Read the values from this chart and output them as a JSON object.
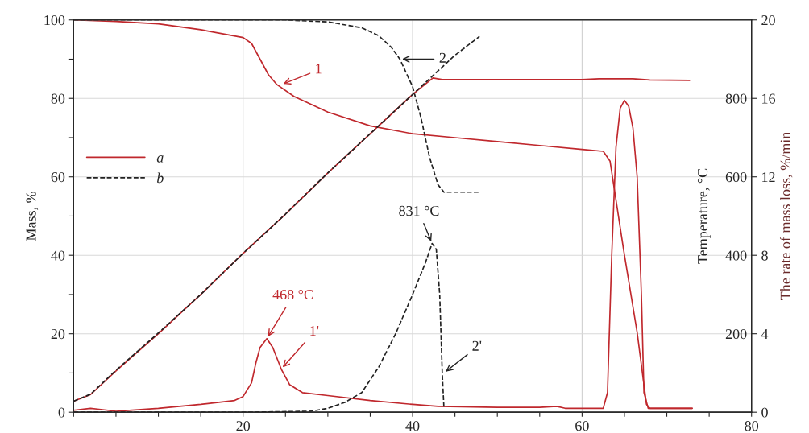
{
  "chart_data": {
    "type": "line",
    "ylabel": "Mass, %",
    "y2label": "Temperature, °C",
    "y3label": "The rate of mass loss, %/min",
    "xlim": [
      0,
      80
    ],
    "xticks": [
      {
        "value": 0,
        "label": null
      },
      {
        "value": 5,
        "label": null
      },
      {
        "value": 10,
        "label": null
      },
      {
        "value": 15,
        "label": null
      },
      20,
      {
        "value": 25,
        "label": null
      },
      {
        "value": 30,
        "label": null
      },
      {
        "value": 35,
        "label": null
      },
      40,
      {
        "value": 45,
        "label": null
      },
      {
        "value": 50,
        "label": null
      },
      {
        "value": 55,
        "label": null
      },
      60,
      {
        "value": 65,
        "label": null
      },
      {
        "value": 70,
        "label": null
      },
      {
        "value": 75,
        "label": null
      },
      80
    ],
    "ylim": [
      0,
      100
    ],
    "yticks": [
      0,
      {
        "value": 10,
        "label": null
      },
      20,
      {
        "value": 30,
        "label": null
      },
      40,
      {
        "value": 50,
        "label": null
      },
      60,
      {
        "value": 70,
        "label": null
      },
      80,
      {
        "value": 90,
        "label": null
      },
      100
    ],
    "y2lim": [
      0,
      1000
    ],
    "y2ticks": [
      200,
      400,
      600,
      800
    ],
    "y3lim": [
      0,
      20
    ],
    "y3ticks": [
      0,
      4,
      8,
      12,
      16,
      20
    ],
    "grid": true,
    "legend": "left",
    "series": [
      {
        "name": "a",
        "color": "#c0282d",
        "line_style": "solid",
        "axis": "y",
        "x": [
          0,
          5,
          10,
          15,
          20,
          21,
          22,
          23,
          24,
          26,
          30,
          35,
          40,
          45,
          50,
          55,
          60,
          62.5,
          63.3,
          64.9,
          66.5,
          67.6,
          68,
          73
        ],
        "values": [
          100,
          99.6,
          99,
          97.5,
          95.5,
          94,
          90,
          86,
          83.5,
          80.5,
          76.5,
          73,
          71,
          70,
          69,
          68,
          67,
          66.5,
          64,
          41.4,
          20.3,
          2,
          1,
          1
        ]
      },
      {
        "name": "b",
        "color": "#222222",
        "line_style": "dashed",
        "axis": "y",
        "x": [
          0,
          10,
          20,
          25,
          30,
          34,
          36,
          37.5,
          38.5,
          40,
          41,
          42,
          43,
          43.7,
          47.9
        ],
        "values": [
          100,
          100,
          100,
          100,
          99.5,
          98,
          96,
          93,
          90,
          83,
          75,
          65,
          58,
          56.1,
          56.1
        ]
      },
      {
        "color": "#c0282d",
        "line_style": "solid",
        "axis": "y2",
        "x": [
          0,
          2,
          5,
          10,
          15,
          20,
          25,
          30,
          35,
          40,
          42.4,
          43.5,
          50,
          60,
          62,
          66,
          68,
          72.7
        ],
        "values": [
          28,
          45,
          105,
          200,
          300,
          405,
          505,
          610,
          710,
          810,
          852,
          848,
          848,
          848,
          850,
          850,
          847,
          846
        ]
      },
      {
        "color": "#222222",
        "line_style": "dashed",
        "axis": "y2",
        "x": [
          0,
          2,
          5,
          10,
          15,
          20,
          25,
          30,
          35,
          40,
          45,
          47.9
        ],
        "values": [
          28,
          46,
          107,
          202,
          300,
          405,
          505,
          610,
          710,
          810,
          910,
          958
        ]
      },
      {
        "color": "#c0282d",
        "line_style": "solid",
        "axis": "y3",
        "x": [
          0,
          2,
          3,
          5,
          10,
          15,
          19,
          20,
          21,
          21.5,
          22,
          22.8,
          23.5,
          24.5,
          25.5,
          27,
          30,
          35,
          40,
          43,
          50,
          55,
          57,
          58,
          62.5,
          63,
          63.5,
          64,
          64.5,
          65,
          65.5,
          66,
          66.5,
          67,
          67.3,
          67.8,
          73
        ],
        "values": [
          0.1,
          0.2,
          0.15,
          0.05,
          0.2,
          0.4,
          0.6,
          0.8,
          1.5,
          2.5,
          3.3,
          3.75,
          3.3,
          2.2,
          1.4,
          1.0,
          0.85,
          0.6,
          0.4,
          0.3,
          0.25,
          0.25,
          0.3,
          0.2,
          0.2,
          1,
          8,
          13.5,
          15.5,
          15.9,
          15.6,
          14.5,
          12,
          6,
          1,
          0.2,
          0.2
        ]
      },
      {
        "color": "#222222",
        "line_style": "dashed",
        "axis": "y3",
        "x": [
          0,
          20,
          28,
          30,
          32,
          34,
          36,
          38,
          40,
          41.5,
          42.3,
          42.8,
          43.2,
          43.5,
          43.7
        ],
        "values": [
          0,
          0,
          0.05,
          0.2,
          0.5,
          1,
          2.3,
          4,
          6,
          7.6,
          8.6,
          8.3,
          6,
          2,
          0.2
        ]
      }
    ],
    "annotations": [
      {
        "text": "1",
        "x": 24.5,
        "y": 83.5
      },
      {
        "text": "2",
        "x": 38.5,
        "y": 90
      },
      {
        "text": "468 °C",
        "x": 22.8,
        "y": 18.8
      },
      {
        "text": "1'",
        "x": 24.5,
        "y": 11
      },
      {
        "text": "831 °C",
        "x": 42.3,
        "y": 43
      },
      {
        "text": "2'",
        "x": 43.7,
        "y": 10
      }
    ]
  }
}
